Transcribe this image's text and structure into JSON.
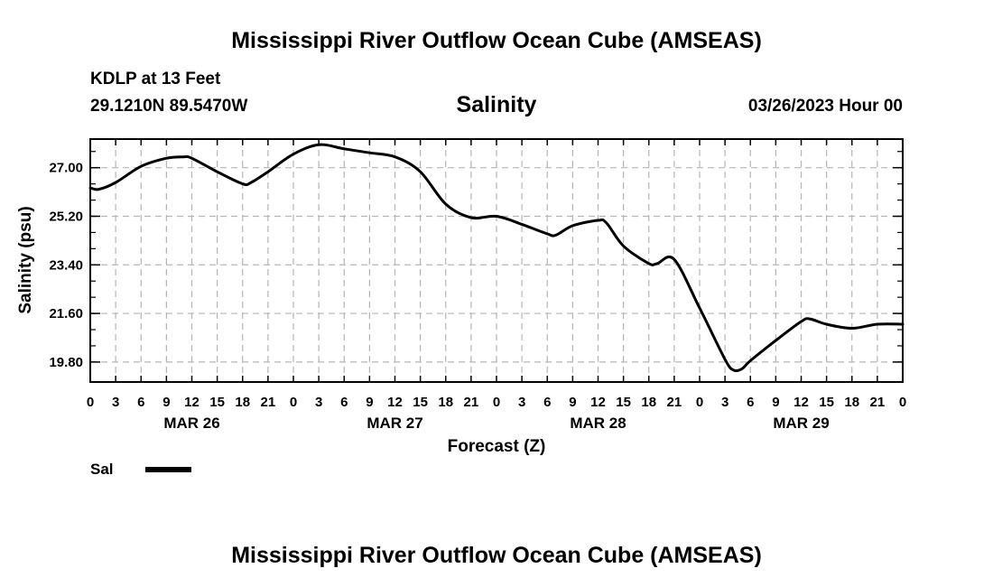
{
  "header": {
    "title": "Mississippi River Outflow Ocean Cube (AMSEAS)",
    "station": "KDLP at 13 Feet",
    "coords": "29.1210N  89.5470W",
    "variable": "Salinity",
    "datetime": "03/26/2023 Hour 00"
  },
  "legend": {
    "label": "Sal",
    "color": "#000000"
  },
  "footer": {
    "title": "Mississippi River Outflow Ocean Cube (AMSEAS)"
  },
  "chart_data": {
    "type": "line",
    "title": "Salinity",
    "xlabel": "Forecast (Z)",
    "ylabel": "Salinity (psu)",
    "xlim": [
      0,
      96
    ],
    "ylim": [
      19.06,
      28.06
    ],
    "grid": true,
    "y_ticks": [
      "27.00",
      "25.20",
      "23.40",
      "21.60",
      "19.80"
    ],
    "y_tick_values": [
      27.0,
      25.2,
      23.4,
      21.6,
      19.8
    ],
    "x_tick_labels": [
      "0",
      "3",
      "6",
      "9",
      "12",
      "15",
      "18",
      "21",
      "0",
      "3",
      "6",
      "9",
      "12",
      "15",
      "18",
      "21",
      "0",
      "3",
      "6",
      "9",
      "12",
      "15",
      "18",
      "21",
      "0",
      "3",
      "6",
      "9",
      "12",
      "15",
      "18",
      "21",
      "0"
    ],
    "x_tick_step_hours": 3,
    "day_labels": [
      {
        "label": "MAR 26",
        "hour": 12
      },
      {
        "label": "MAR 27",
        "hour": 36
      },
      {
        "label": "MAR 28",
        "hour": 60
      },
      {
        "label": "MAR 29",
        "hour": 84
      }
    ],
    "series": [
      {
        "name": "Sal",
        "x": [
          0,
          1,
          3,
          6,
          9,
          11,
          12,
          15,
          18,
          19,
          21,
          24,
          27,
          30,
          33,
          36,
          39,
          42,
          45,
          48,
          51,
          54,
          55,
          57,
          60,
          61,
          63,
          66,
          67,
          69,
          72,
          75,
          76,
          77,
          78,
          81,
          84,
          85,
          87,
          90,
          93,
          96
        ],
        "values": [
          26.25,
          26.2,
          26.45,
          27.05,
          27.35,
          27.4,
          27.35,
          26.85,
          26.4,
          26.45,
          26.85,
          27.5,
          27.85,
          27.7,
          27.55,
          27.4,
          26.85,
          25.65,
          25.15,
          25.2,
          24.9,
          24.55,
          24.5,
          24.85,
          25.05,
          24.95,
          24.1,
          23.45,
          23.45,
          23.6,
          21.8,
          19.9,
          19.5,
          19.55,
          19.85,
          20.6,
          21.3,
          21.4,
          21.2,
          21.05,
          21.2,
          21.2
        ]
      }
    ]
  }
}
